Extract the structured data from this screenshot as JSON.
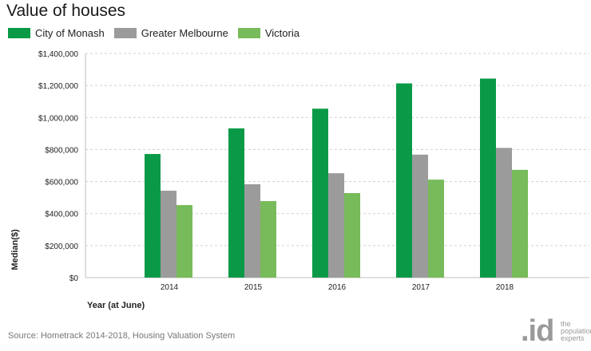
{
  "chart_data": {
    "type": "bar",
    "title": "Value of houses",
    "xlabel": "Year (at June)",
    "ylabel": "Median($)",
    "categories": [
      "2014",
      "2015",
      "2016",
      "2017",
      "2018"
    ],
    "series": [
      {
        "name": "City of Monash",
        "color": "#0a9a47",
        "values": [
          772000,
          932000,
          1055000,
          1213000,
          1243000
        ]
      },
      {
        "name": "Greater Melbourne",
        "color": "#9b9b9b",
        "values": [
          543000,
          583000,
          652000,
          768000,
          810000
        ]
      },
      {
        "name": "Victoria",
        "color": "#77bb5a",
        "values": [
          453000,
          478000,
          528000,
          612000,
          673000
        ]
      }
    ],
    "ylim": [
      0,
      1400000
    ],
    "yticks": [
      0,
      200000,
      400000,
      600000,
      800000,
      1000000,
      1200000,
      1400000
    ],
    "ytick_labels": [
      "$0",
      "$200,000",
      "$400,000",
      "$600,000",
      "$800,000",
      "$1,000,000",
      "$1,200,000",
      "$1,400,000"
    ],
    "grid": true,
    "legend_position": "top-left"
  },
  "source": "Source: Hometrack 2014-2018, Housing Valuation System",
  "logo": {
    "mark": ".id",
    "tagline": [
      "the",
      "population",
      "experts"
    ]
  }
}
